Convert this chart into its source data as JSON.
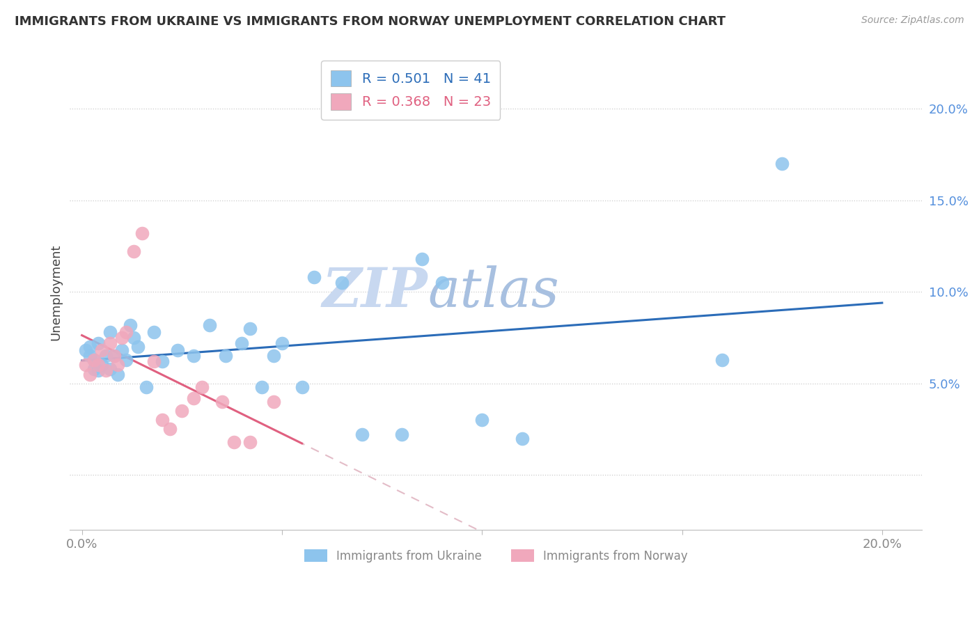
{
  "title": "IMMIGRANTS FROM UKRAINE VS IMMIGRANTS FROM NORWAY UNEMPLOYMENT CORRELATION CHART",
  "source": "Source: ZipAtlas.com",
  "ylabel": "Unemployment",
  "ukraine_color": "#8DC4ED",
  "norway_color": "#F0A8BC",
  "ukraine_line_color": "#2B6CB8",
  "norway_line_color": "#E06080",
  "norway_dash_color": "#D8A0B0",
  "watermark_zip_color": "#C8D8F0",
  "watermark_atlas_color": "#A0B8D8",
  "R_ukraine": 0.501,
  "N_ukraine": 41,
  "R_norway": 0.368,
  "N_norway": 23,
  "legend_ukraine_label": "Immigrants from Ukraine",
  "legend_norway_label": "Immigrants from Norway",
  "grid_color": "#CCCCCC",
  "background_color": "#FFFFFF",
  "ukraine_x": [
    0.001,
    0.002,
    0.002,
    0.003,
    0.003,
    0.004,
    0.004,
    0.005,
    0.006,
    0.007,
    0.007,
    0.008,
    0.009,
    0.01,
    0.011,
    0.012,
    0.013,
    0.014,
    0.016,
    0.018,
    0.02,
    0.024,
    0.028,
    0.032,
    0.036,
    0.04,
    0.042,
    0.045,
    0.048,
    0.05,
    0.055,
    0.058,
    0.065,
    0.07,
    0.08,
    0.085,
    0.09,
    0.1,
    0.11,
    0.16,
    0.175
  ],
  "ukraine_y": [
    0.068,
    0.065,
    0.07,
    0.058,
    0.063,
    0.057,
    0.072,
    0.06,
    0.065,
    0.058,
    0.078,
    0.065,
    0.055,
    0.068,
    0.063,
    0.082,
    0.075,
    0.07,
    0.048,
    0.078,
    0.062,
    0.068,
    0.065,
    0.082,
    0.065,
    0.072,
    0.08,
    0.048,
    0.065,
    0.072,
    0.048,
    0.108,
    0.105,
    0.022,
    0.022,
    0.118,
    0.105,
    0.03,
    0.02,
    0.063,
    0.17
  ],
  "norway_x": [
    0.001,
    0.002,
    0.003,
    0.004,
    0.005,
    0.006,
    0.007,
    0.008,
    0.009,
    0.01,
    0.011,
    0.013,
    0.015,
    0.018,
    0.02,
    0.022,
    0.025,
    0.028,
    0.03,
    0.035,
    0.038,
    0.042,
    0.048
  ],
  "norway_y": [
    0.06,
    0.055,
    0.063,
    0.06,
    0.068,
    0.057,
    0.072,
    0.065,
    0.06,
    0.075,
    0.078,
    0.122,
    0.132,
    0.062,
    0.03,
    0.025,
    0.035,
    0.042,
    0.048,
    0.04,
    0.018,
    0.018,
    0.04
  ],
  "xlim_min": -0.003,
  "xlim_max": 0.21,
  "ylim_min": -0.03,
  "ylim_max": 0.23
}
